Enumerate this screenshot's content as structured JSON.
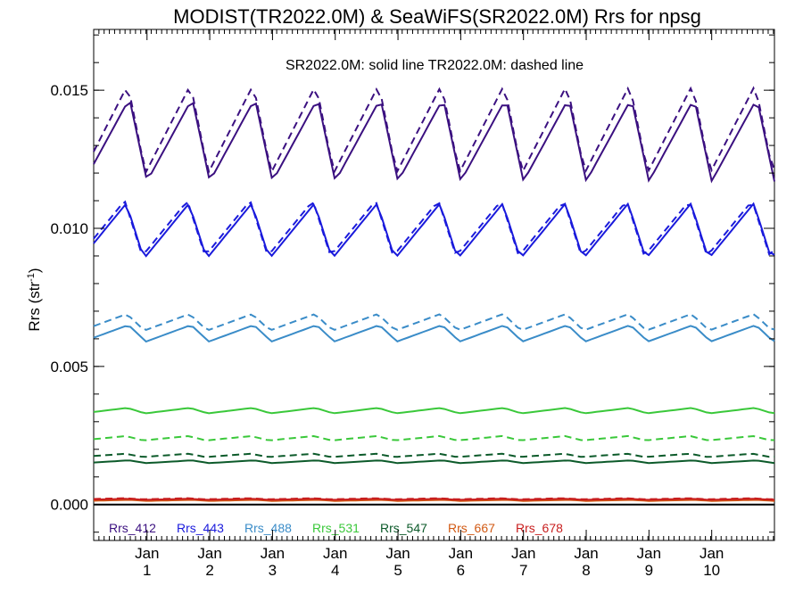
{
  "chart_data": {
    "type": "line",
    "title": "MODIST(TR2022.0M) & SeaWiFS(SR2022.0M)  Rrs for npsg",
    "ylabel": "Rrs (str",
    "ylabel_sup": "-1",
    "ylabel_close": ")",
    "xlabel": "",
    "note": "SR2022.0M: solid line   TR2022.0M: dashed line",
    "ylim": [
      -0.0013,
      0.0172
    ],
    "xlim": [
      0,
      10.85
    ],
    "yticks": [
      {
        "value": 0.0,
        "label": "0.000"
      },
      {
        "value": 0.005,
        "label": "0.005"
      },
      {
        "value": 0.01,
        "label": "0.010"
      },
      {
        "value": 0.015,
        "label": "0.015"
      }
    ],
    "xticks": [
      {
        "value": 0.85,
        "month": "Jan",
        "year": "1"
      },
      {
        "value": 1.85,
        "month": "Jan",
        "year": "2"
      },
      {
        "value": 2.85,
        "month": "Jan",
        "year": "3"
      },
      {
        "value": 3.85,
        "month": "Jan",
        "year": "4"
      },
      {
        "value": 4.85,
        "month": "Jan",
        "year": "5"
      },
      {
        "value": 5.85,
        "month": "Jan",
        "year": "6"
      },
      {
        "value": 6.85,
        "month": "Jan",
        "year": "7"
      },
      {
        "value": 7.85,
        "month": "Jan",
        "year": "8"
      },
      {
        "value": 8.85,
        "month": "Jan",
        "year": "9"
      },
      {
        "value": 9.85,
        "month": "Jan",
        "year": "10"
      }
    ],
    "series": [
      {
        "name": "Rrs_412",
        "color": "#3b1080",
        "solid": {
          "base": 0.0132,
          "amp": 0.0015,
          "phase": 0.0
        },
        "dashed": {
          "base": 0.0136,
          "amp": 0.0016,
          "phase": 0.3
        }
      },
      {
        "name": "Rrs_443",
        "color": "#1a1adc",
        "solid": {
          "base": 0.0099,
          "amp": 0.001,
          "phase": 0.6
        },
        "dashed": {
          "base": 0.01,
          "amp": 0.001,
          "phase": 0.9
        }
      },
      {
        "name": "Rrs_488",
        "color": "#3a8cc8",
        "solid": {
          "base": 0.0062,
          "amp": 0.0003,
          "phase": 0.2
        },
        "dashed": {
          "base": 0.0066,
          "amp": 0.0003,
          "phase": 0.5
        }
      },
      {
        "name": "Rrs_531",
        "color": "#3ac83a",
        "solid": {
          "base": 0.0034,
          "amp": 0.0001,
          "phase": 0.4
        },
        "dashed": {
          "base": 0.0024,
          "amp": 8e-05,
          "phase": 0.7
        }
      },
      {
        "name": "Rrs_547",
        "color": "#0c5a2a",
        "solid": {
          "base": 0.00155,
          "amp": 5e-05,
          "phase": 0.1
        },
        "dashed": {
          "base": 0.00178,
          "amp": 6e-05,
          "phase": 0.8
        }
      },
      {
        "name": "Rrs_667",
        "color": "#d25a14",
        "solid": {
          "base": 0.00015,
          "amp": 2e-05,
          "phase": 0.0
        },
        "dashed": {
          "base": 0.00018,
          "amp": 2e-05,
          "phase": 0.3
        }
      },
      {
        "name": "Rrs_678",
        "color": "#c81e1e",
        "solid": {
          "base": 0.00019,
          "amp": 2e-05,
          "phase": 0.5
        },
        "dashed": {
          "base": 0.00021,
          "amp": 2e-05,
          "phase": 0.9
        }
      }
    ],
    "zero_line": 0.0,
    "legend_placement": "bottom-inside"
  }
}
